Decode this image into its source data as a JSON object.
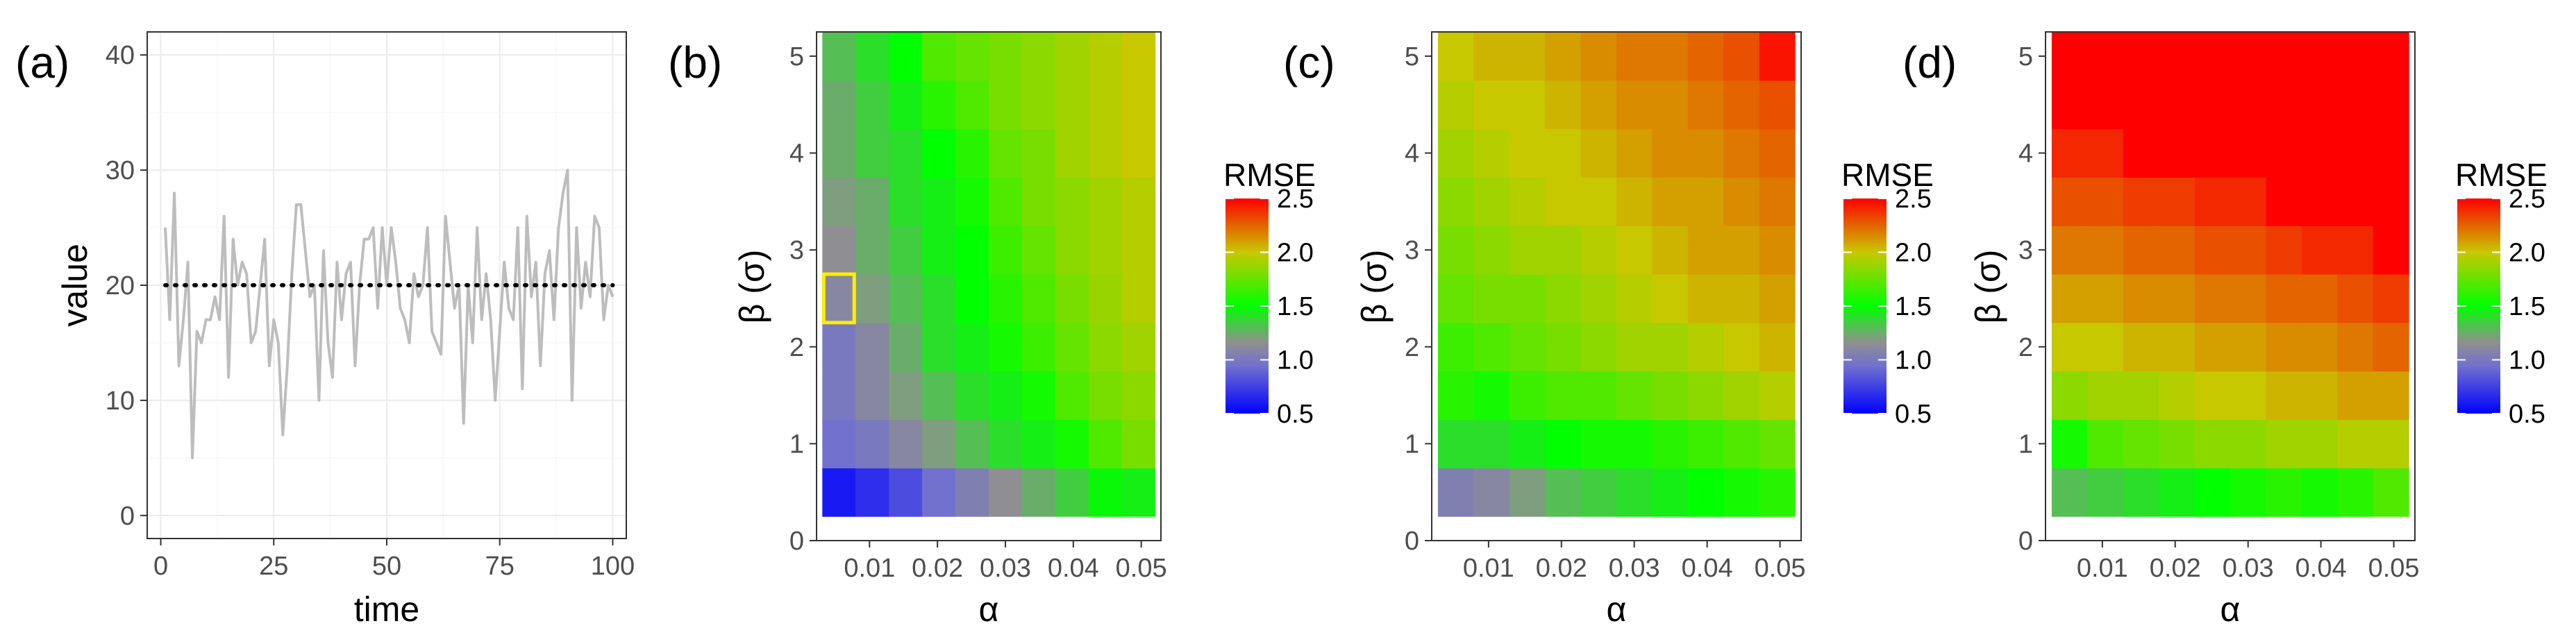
{
  "colors": {
    "line": "#bdbdbd",
    "reference": "#000000",
    "highlight": "#ffee00",
    "grid": "#ebebeb",
    "panel_border": "#333333",
    "scale": [
      "#0000ff",
      "#7070d0",
      "#909090",
      "#00ff00",
      "#c8c800",
      "#ff0000"
    ]
  },
  "chart_data": [
    {
      "id": "a",
      "panel_label": "(a)",
      "type": "line",
      "xlabel": "time",
      "ylabel": "value",
      "xlim": [
        -3,
        103
      ],
      "ylim": [
        -2,
        42
      ],
      "xticks": [
        0,
        25,
        50,
        75,
        100
      ],
      "yticks": [
        0,
        10,
        20,
        30,
        40
      ],
      "reference_line": {
        "y": 20,
        "style": "dotted"
      },
      "series": [
        {
          "name": "value",
          "x": [
            1,
            2,
            3,
            4,
            5,
            6,
            7,
            8,
            9,
            10,
            11,
            12,
            13,
            14,
            15,
            16,
            17,
            18,
            19,
            20,
            21,
            22,
            23,
            24,
            25,
            26,
            27,
            28,
            29,
            30,
            31,
            32,
            33,
            34,
            35,
            36,
            37,
            38,
            39,
            40,
            41,
            42,
            43,
            44,
            45,
            46,
            47,
            48,
            49,
            50,
            51,
            52,
            53,
            54,
            55,
            56,
            57,
            58,
            59,
            60,
            61,
            62,
            63,
            64,
            65,
            66,
            67,
            68,
            69,
            70,
            71,
            72,
            73,
            74,
            75,
            76,
            77,
            78,
            79,
            80,
            81,
            82,
            83,
            84,
            85,
            86,
            87,
            88,
            89,
            90,
            91,
            92,
            93,
            94,
            95,
            96,
            97,
            98,
            99,
            100
          ],
          "values": [
            25,
            17,
            28,
            13,
            17,
            22,
            5,
            16,
            15,
            17,
            17,
            19,
            17,
            26,
            12,
            24,
            20,
            22,
            21,
            15,
            16,
            20,
            24,
            13,
            17,
            15,
            7,
            13,
            21,
            27,
            27,
            23,
            19,
            20,
            10,
            23,
            15,
            12,
            22,
            17,
            21,
            22,
            13,
            20,
            24,
            24,
            25,
            18,
            25,
            20,
            25,
            22,
            18,
            17,
            15,
            21,
            19,
            20,
            25,
            16,
            15,
            14,
            26,
            22,
            18,
            20,
            8,
            20,
            15,
            25,
            17,
            21,
            17,
            10,
            16,
            22,
            18,
            17,
            25,
            11,
            26,
            19,
            22,
            13,
            21,
            23,
            17,
            25,
            28,
            30,
            10,
            25,
            18,
            22,
            19,
            26,
            25,
            17,
            20,
            19
          ]
        }
      ]
    },
    {
      "id": "b",
      "panel_label": "(b)",
      "type": "heatmap",
      "xlabel": "α",
      "ylabel": "β (σ)",
      "x_centers": [
        0.0055,
        0.0104,
        0.0153,
        0.0202,
        0.0251,
        0.03,
        0.0349,
        0.0398,
        0.0447,
        0.0496
      ],
      "y_centers": [
        0.5,
        1.0,
        1.5,
        2.0,
        2.5,
        3.0,
        3.5,
        4.0,
        4.5,
        5.0
      ],
      "xlim": [
        0.0022,
        0.0529
      ],
      "ylim": [
        0,
        5.25
      ],
      "xticks": [
        0.01,
        0.02,
        0.03,
        0.04,
        0.05
      ],
      "xtick_labels": [
        "0.01",
        "0.02",
        "0.03",
        "0.04",
        "0.05"
      ],
      "yticks": [
        0,
        1,
        2,
        3,
        4,
        5
      ],
      "values": [
        [
          0.6,
          0.68,
          0.8,
          0.95,
          1.05,
          1.15,
          1.25,
          1.35,
          1.48,
          1.45
        ],
        [
          0.95,
          1.0,
          1.1,
          1.2,
          1.3,
          1.4,
          1.45,
          1.55,
          1.7,
          1.8
        ],
        [
          1.0,
          1.1,
          1.2,
          1.3,
          1.4,
          1.45,
          1.55,
          1.7,
          1.8,
          1.85
        ],
        [
          1.0,
          1.1,
          1.25,
          1.4,
          1.45,
          1.55,
          1.65,
          1.75,
          1.85,
          1.9
        ],
        [
          1.1,
          1.2,
          1.3,
          1.4,
          1.5,
          1.6,
          1.7,
          1.8,
          1.88,
          1.95
        ],
        [
          1.15,
          1.25,
          1.35,
          1.45,
          1.5,
          1.65,
          1.75,
          1.85,
          1.9,
          1.95
        ],
        [
          1.2,
          1.25,
          1.4,
          1.45,
          1.55,
          1.7,
          1.8,
          1.85,
          1.9,
          1.95
        ],
        [
          1.25,
          1.35,
          1.4,
          1.5,
          1.6,
          1.75,
          1.8,
          1.9,
          1.95,
          2.0
        ],
        [
          1.25,
          1.35,
          1.45,
          1.6,
          1.7,
          1.8,
          1.85,
          1.9,
          1.95,
          2.0
        ],
        [
          1.3,
          1.4,
          1.5,
          1.7,
          1.75,
          1.8,
          1.85,
          1.9,
          1.95,
          2.0
        ]
      ],
      "highlight_cell": {
        "x": 0.0055,
        "y": 2.5
      },
      "legend": {
        "title": "RMSE",
        "range": [
          0.5,
          2.5
        ],
        "ticks": [
          0.5,
          1.0,
          1.5,
          2.0,
          2.5
        ],
        "tick_labels": [
          "0.5",
          "1.0",
          "1.5",
          "2.0",
          "2.5"
        ]
      }
    },
    {
      "id": "c",
      "panel_label": "(c)",
      "type": "heatmap",
      "xlabel": "α",
      "ylabel": "β (σ)",
      "x_centers": [
        0.0055,
        0.0104,
        0.0153,
        0.0202,
        0.0251,
        0.03,
        0.0349,
        0.0398,
        0.0447,
        0.0496
      ],
      "y_centers": [
        0.5,
        1.0,
        1.5,
        2.0,
        2.5,
        3.0,
        3.5,
        4.0,
        4.5,
        5.0
      ],
      "xlim": [
        0.0022,
        0.0529
      ],
      "ylim": [
        0,
        5.25
      ],
      "xticks": [
        0.01,
        0.02,
        0.03,
        0.04,
        0.05
      ],
      "xtick_labels": [
        "0.01",
        "0.02",
        "0.03",
        "0.04",
        "0.05"
      ],
      "yticks": [
        0,
        1,
        2,
        3,
        4,
        5
      ],
      "values": [
        [
          1.05,
          1.1,
          1.2,
          1.3,
          1.35,
          1.4,
          1.45,
          1.5,
          1.55,
          1.6
        ],
        [
          1.4,
          1.4,
          1.45,
          1.5,
          1.55,
          1.55,
          1.6,
          1.65,
          1.7,
          1.75
        ],
        [
          1.6,
          1.55,
          1.65,
          1.7,
          1.7,
          1.75,
          1.8,
          1.85,
          1.9,
          1.95
        ],
        [
          1.65,
          1.7,
          1.75,
          1.8,
          1.85,
          1.9,
          1.9,
          1.95,
          2.0,
          2.05
        ],
        [
          1.75,
          1.8,
          1.8,
          1.85,
          1.9,
          1.95,
          2.0,
          2.05,
          2.05,
          2.1
        ],
        [
          1.8,
          1.85,
          1.9,
          1.9,
          1.95,
          2.0,
          2.05,
          2.1,
          2.1,
          2.15
        ],
        [
          1.85,
          1.9,
          1.95,
          2.0,
          2.0,
          2.05,
          2.1,
          2.1,
          2.15,
          2.2
        ],
        [
          1.9,
          1.95,
          2.0,
          2.0,
          2.05,
          2.1,
          2.15,
          2.15,
          2.2,
          2.25
        ],
        [
          1.95,
          2.0,
          2.0,
          2.05,
          2.1,
          2.15,
          2.15,
          2.2,
          2.25,
          2.3
        ],
        [
          2.0,
          2.05,
          2.05,
          2.1,
          2.15,
          2.2,
          2.2,
          2.25,
          2.3,
          2.45
        ]
      ],
      "legend": {
        "title": "RMSE",
        "range": [
          0.5,
          2.5
        ],
        "ticks": [
          0.5,
          1.0,
          1.5,
          2.0,
          2.5
        ],
        "tick_labels": [
          "0.5",
          "1.0",
          "1.5",
          "2.0",
          "2.5"
        ]
      }
    },
    {
      "id": "d",
      "panel_label": "(d)",
      "type": "heatmap",
      "xlabel": "α",
      "ylabel": "β (σ)",
      "x_centers": [
        0.0055,
        0.0104,
        0.0153,
        0.0202,
        0.0251,
        0.03,
        0.0349,
        0.0398,
        0.0447,
        0.0496
      ],
      "y_centers": [
        0.5,
        1.0,
        1.5,
        2.0,
        2.5,
        3.0,
        3.5,
        4.0,
        4.5,
        5.0
      ],
      "xlim": [
        0.0022,
        0.0529
      ],
      "ylim": [
        0,
        5.25
      ],
      "xticks": [
        0.01,
        0.02,
        0.03,
        0.04,
        0.05
      ],
      "xtick_labels": [
        "0.01",
        "0.02",
        "0.03",
        "0.04",
        "0.05"
      ],
      "yticks": [
        0,
        1,
        2,
        3,
        4,
        5
      ],
      "values": [
        [
          1.3,
          1.35,
          1.4,
          1.45,
          1.5,
          1.55,
          1.6,
          1.55,
          1.6,
          1.7
        ],
        [
          1.55,
          1.7,
          1.75,
          1.8,
          1.85,
          1.85,
          1.9,
          1.9,
          1.95,
          1.95
        ],
        [
          1.85,
          1.9,
          1.9,
          1.95,
          2.0,
          2.0,
          2.05,
          2.05,
          2.1,
          2.1
        ],
        [
          2.0,
          2.0,
          2.05,
          2.05,
          2.1,
          2.1,
          2.15,
          2.15,
          2.2,
          2.25
        ],
        [
          2.1,
          2.1,
          2.15,
          2.15,
          2.2,
          2.2,
          2.25,
          2.25,
          2.3,
          2.35
        ],
        [
          2.2,
          2.2,
          2.25,
          2.25,
          2.3,
          2.3,
          2.35,
          2.4,
          2.4,
          2.5
        ],
        [
          2.3,
          2.3,
          2.35,
          2.35,
          2.4,
          2.4,
          2.5,
          2.5,
          2.5,
          2.5
        ],
        [
          2.4,
          2.4,
          2.5,
          2.5,
          2.5,
          2.5,
          2.5,
          2.5,
          2.5,
          2.5
        ],
        [
          2.5,
          2.5,
          2.5,
          2.5,
          2.5,
          2.5,
          2.5,
          2.5,
          2.5,
          2.5
        ],
        [
          2.5,
          2.5,
          2.5,
          2.5,
          2.5,
          2.5,
          2.5,
          2.5,
          2.5,
          2.5
        ]
      ],
      "legend": {
        "title": "RMSE",
        "range": [
          0.5,
          2.5
        ],
        "ticks": [
          0.5,
          1.0,
          1.5,
          2.0,
          2.5
        ],
        "tick_labels": [
          "0.5",
          "1.0",
          "1.5",
          "2.0",
          "2.5"
        ]
      }
    }
  ]
}
